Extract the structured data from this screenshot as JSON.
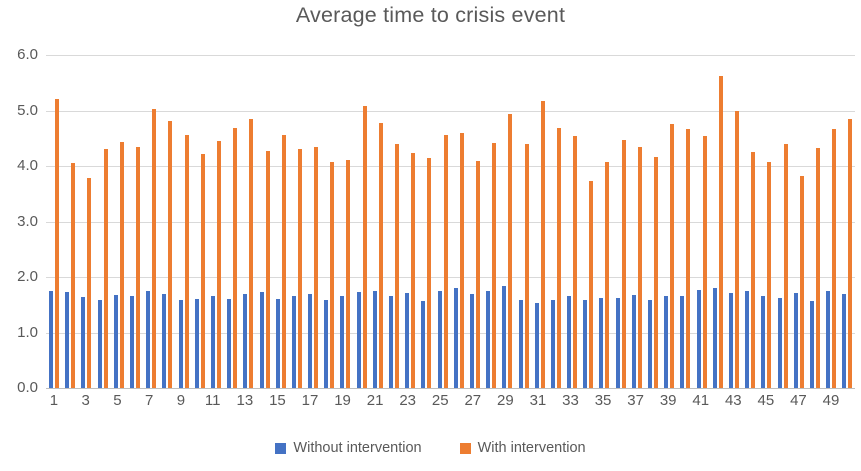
{
  "chart_data": {
    "type": "bar",
    "title": "Average time to crisis event",
    "categories": [
      1,
      2,
      3,
      4,
      5,
      6,
      7,
      8,
      9,
      10,
      11,
      12,
      13,
      14,
      15,
      16,
      17,
      18,
      19,
      20,
      21,
      22,
      23,
      24,
      25,
      26,
      27,
      28,
      29,
      30,
      31,
      32,
      33,
      34,
      35,
      36,
      37,
      38,
      39,
      40,
      41,
      42,
      43,
      44,
      45,
      46,
      47,
      48,
      49,
      50
    ],
    "x_tick_labels_shown": [
      "1",
      "3",
      "5",
      "7",
      "9",
      "11",
      "13",
      "15",
      "17",
      "19",
      "21",
      "23",
      "25",
      "27",
      "29",
      "31",
      "33",
      "35",
      "37",
      "39",
      "41",
      "43",
      "45",
      "47",
      "49"
    ],
    "series": [
      {
        "name": "Without intervention",
        "color": "#4472C4",
        "values": [
          1.74,
          1.73,
          1.64,
          1.58,
          1.68,
          1.65,
          1.74,
          1.7,
          1.58,
          1.6,
          1.65,
          1.61,
          1.7,
          1.73,
          1.61,
          1.66,
          1.7,
          1.59,
          1.65,
          1.73,
          1.74,
          1.66,
          1.71,
          1.56,
          1.74,
          1.8,
          1.69,
          1.74,
          1.83,
          1.58,
          1.53,
          1.59,
          1.65,
          1.59,
          1.63,
          1.63,
          1.67,
          1.59,
          1.66,
          1.66,
          1.77,
          1.8,
          1.72,
          1.74,
          1.65,
          1.62,
          1.71,
          1.56,
          1.74,
          1.7
        ]
      },
      {
        "name": "With intervention",
        "color": "#ED7D31",
        "values": [
          5.2,
          4.05,
          3.78,
          4.31,
          4.43,
          4.35,
          5.03,
          4.82,
          4.55,
          4.22,
          4.45,
          4.68,
          4.84,
          4.27,
          4.56,
          4.3,
          4.35,
          4.08,
          4.1,
          5.08,
          4.78,
          4.4,
          4.23,
          4.14,
          4.55,
          4.6,
          4.09,
          4.42,
          4.94,
          4.39,
          5.17,
          4.68,
          4.54,
          3.73,
          4.08,
          4.47,
          4.35,
          4.17,
          4.76,
          4.66,
          4.54,
          5.62,
          5.0,
          4.25,
          4.07,
          4.39,
          3.82,
          4.33,
          4.67,
          4.84
        ]
      }
    ],
    "ylim": [
      0,
      6
    ],
    "ytick_step": 1,
    "ytick_labels": [
      "0.0",
      "1.0",
      "2.0",
      "3.0",
      "4.0",
      "5.0",
      "6.0"
    ],
    "grid": true,
    "legend_position": "bottom",
    "colors": {
      "title_text": "#595959",
      "tick_text": "#595959",
      "gridline": "#d9d9d9",
      "axis_line": "#bfbfbf",
      "background": "#ffffff"
    }
  }
}
